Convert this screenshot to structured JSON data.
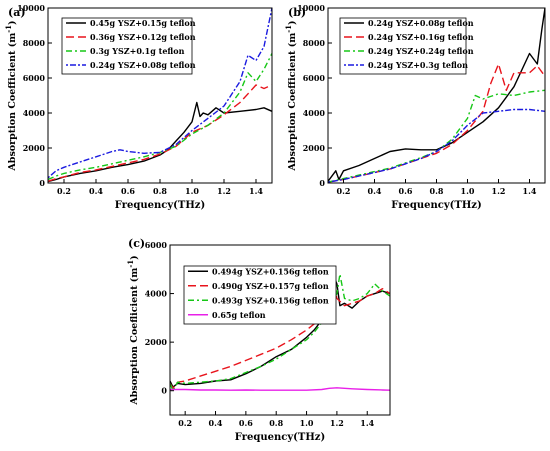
{
  "chart_data": [
    {
      "panel_label": "(a)",
      "type": "line",
      "xlabel": "Frequency(THz)",
      "ylabel": "Absorption Coefficient (m",
      "ylabel_sup": "-1",
      "ylabel_end": ")",
      "xlim": [
        0.1,
        1.5
      ],
      "ylim": [
        0,
        10000
      ],
      "xticks": [
        0.2,
        0.4,
        0.6,
        0.8,
        1.0,
        1.2,
        1.4
      ],
      "xtick_labels": [
        "0.2",
        "0.4",
        "0.6",
        "0.8",
        "1.0",
        "1.2",
        "1.4"
      ],
      "yticks": [
        0,
        2000,
        4000,
        6000,
        8000,
        10000
      ],
      "ytick_labels": [
        "0",
        "2000",
        "4000",
        "6000",
        "8000",
        "10000"
      ],
      "legend_position": "top-left",
      "series": [
        {
          "name": "0.45g YSZ+0.15g teflon",
          "color": "#000000",
          "dash": "solid",
          "x": [
            0.1,
            0.15,
            0.2,
            0.3,
            0.4,
            0.5,
            0.6,
            0.7,
            0.8,
            0.85,
            0.9,
            0.95,
            1.0,
            1.03,
            1.05,
            1.07,
            1.1,
            1.15,
            1.2,
            1.3,
            1.4,
            1.45,
            1.5
          ],
          "y": [
            80,
            200,
            350,
            550,
            700,
            900,
            1050,
            1250,
            1600,
            1900,
            2400,
            2900,
            3500,
            4600,
            3800,
            4000,
            3900,
            4300,
            4000,
            4100,
            4200,
            4300,
            4100
          ]
        },
        {
          "name": "0.36g YSZ+0.12g teflon",
          "color": "#e8141c",
          "dash": "8,4",
          "x": [
            0.1,
            0.15,
            0.2,
            0.3,
            0.4,
            0.5,
            0.6,
            0.7,
            0.8,
            0.9,
            1.0,
            1.1,
            1.2,
            1.3,
            1.35,
            1.4,
            1.45,
            1.5
          ],
          "y": [
            100,
            250,
            350,
            600,
            750,
            950,
            1150,
            1350,
            1650,
            2100,
            2900,
            3300,
            3900,
            4600,
            5100,
            5600,
            5400,
            5600
          ]
        },
        {
          "name": "0.3g YSZ+0.1g teflon",
          "color": "#16c716",
          "dash": "6,3,2,3",
          "x": [
            0.1,
            0.15,
            0.2,
            0.3,
            0.4,
            0.5,
            0.6,
            0.7,
            0.8,
            0.9,
            1.0,
            1.1,
            1.2,
            1.3,
            1.35,
            1.4,
            1.45,
            1.5
          ],
          "y": [
            200,
            400,
            550,
            750,
            900,
            1100,
            1300,
            1500,
            1750,
            2100,
            2800,
            3300,
            4000,
            5200,
            6300,
            5800,
            6500,
            7400
          ]
        },
        {
          "name": "0.24g YSZ+0.08g teflon",
          "color": "#1a1ae0",
          "dash": "2,2,6,2",
          "x": [
            0.1,
            0.15,
            0.2,
            0.3,
            0.4,
            0.5,
            0.55,
            0.6,
            0.7,
            0.8,
            0.9,
            1.0,
            1.1,
            1.2,
            1.3,
            1.35,
            1.4,
            1.45,
            1.5
          ],
          "y": [
            300,
            700,
            900,
            1200,
            1500,
            1800,
            1900,
            1800,
            1700,
            1750,
            2200,
            3000,
            3700,
            4400,
            5800,
            7300,
            7000,
            7800,
            10000
          ]
        }
      ]
    },
    {
      "panel_label": "(b)",
      "type": "line",
      "xlabel": "Frequency(THz)",
      "ylabel": "Absorption Coefficient (m",
      "ylabel_sup": "-1",
      "ylabel_end": ")",
      "xlim": [
        0.1,
        1.5
      ],
      "ylim": [
        0,
        10000
      ],
      "xticks": [
        0.2,
        0.4,
        0.6,
        0.8,
        1.0,
        1.2,
        1.4
      ],
      "xtick_labels": [
        "0.2",
        "0.4",
        "0.6",
        "0.8",
        "1.0",
        "1.2",
        "1.4"
      ],
      "yticks": [
        0,
        2000,
        4000,
        6000,
        8000,
        10000
      ],
      "ytick_labels": [
        "0",
        "2000",
        "4000",
        "6000",
        "8000",
        "10000"
      ],
      "legend_position": "top-left",
      "series": [
        {
          "name": "0.24g YSZ+0.08g teflon",
          "color": "#000000",
          "dash": "solid",
          "x": [
            0.1,
            0.15,
            0.17,
            0.2,
            0.3,
            0.4,
            0.5,
            0.6,
            0.7,
            0.8,
            0.9,
            1.0,
            1.1,
            1.2,
            1.3,
            1.4,
            1.45,
            1.48,
            1.5
          ],
          "y": [
            100,
            700,
            200,
            700,
            1000,
            1400,
            1800,
            1950,
            1900,
            1900,
            2300,
            2900,
            3500,
            4300,
            5500,
            7400,
            6800,
            8800,
            10000
          ]
        },
        {
          "name": "0.24g YSZ+0.16g teflon",
          "color": "#e8141c",
          "dash": "8,4",
          "x": [
            0.1,
            0.2,
            0.3,
            0.4,
            0.5,
            0.6,
            0.7,
            0.8,
            0.9,
            1.0,
            1.1,
            1.15,
            1.2,
            1.25,
            1.3,
            1.4,
            1.45,
            1.5
          ],
          "y": [
            50,
            200,
            400,
            600,
            800,
            1100,
            1400,
            1700,
            2200,
            3000,
            4100,
            5700,
            6800,
            5300,
            6300,
            6300,
            6700,
            6100
          ]
        },
        {
          "name": "0.24g YSZ+0.24g teflon",
          "color": "#16c716",
          "dash": "6,3,2,3",
          "x": [
            0.1,
            0.2,
            0.3,
            0.4,
            0.5,
            0.6,
            0.7,
            0.8,
            0.9,
            1.0,
            1.05,
            1.1,
            1.2,
            1.3,
            1.4,
            1.5
          ],
          "y": [
            50,
            250,
            450,
            650,
            850,
            1150,
            1450,
            1800,
            2500,
            3700,
            5000,
            4800,
            5100,
            5000,
            5200,
            5300
          ]
        },
        {
          "name": "0.24g YSZ+0.3g teflon",
          "color": "#1a1ae0",
          "dash": "2,2,6,2",
          "x": [
            0.1,
            0.2,
            0.3,
            0.4,
            0.5,
            0.6,
            0.7,
            0.8,
            0.9,
            1.0,
            1.1,
            1.2,
            1.3,
            1.4,
            1.5
          ],
          "y": [
            50,
            200,
            400,
            600,
            800,
            1100,
            1400,
            1800,
            2400,
            3300,
            4000,
            4100,
            4200,
            4200,
            4100
          ]
        }
      ]
    },
    {
      "panel_label": "(c)",
      "type": "line",
      "xlabel": "Frequency(THz)",
      "ylabel": "Absorption Coeflicient (m",
      "ylabel_sup": "-1",
      "ylabel_end": ")",
      "xlim": [
        0.1,
        1.55
      ],
      "ylim": [
        -1000,
        6000
      ],
      "xticks": [
        0.2,
        0.4,
        0.6,
        0.8,
        1.0,
        1.2,
        1.4
      ],
      "xtick_labels": [
        "0.2",
        "0.4",
        "0.6",
        "0.8",
        "1.0",
        "1.2",
        "1.4"
      ],
      "yticks": [
        0,
        2000,
        4000,
        6000
      ],
      "ytick_labels": [
        "0",
        "2000",
        "4000",
        "6000"
      ],
      "legend_position": "top-left",
      "series": [
        {
          "name": "0.494g YSZ+0.156g teflon",
          "color": "#000000",
          "dash": "solid",
          "x": [
            0.1,
            0.12,
            0.15,
            0.2,
            0.3,
            0.4,
            0.5,
            0.6,
            0.7,
            0.8,
            0.9,
            1.0,
            1.05,
            1.1,
            1.15,
            1.18,
            1.2,
            1.22,
            1.25,
            1.3,
            1.35,
            1.4,
            1.45,
            1.5,
            1.55
          ],
          "y": [
            400,
            150,
            300,
            250,
            300,
            400,
            450,
            700,
            1000,
            1400,
            1700,
            2200,
            2500,
            2900,
            3600,
            4700,
            4400,
            3500,
            3600,
            3400,
            3700,
            3900,
            4000,
            4100,
            4000
          ]
        },
        {
          "name": "0.490g YSZ+0.157g teflon",
          "color": "#e8141c",
          "dash": "8,4",
          "x": [
            0.1,
            0.12,
            0.15,
            0.2,
            0.3,
            0.4,
            0.5,
            0.6,
            0.7,
            0.8,
            0.9,
            1.0,
            1.1,
            1.15,
            1.17,
            1.2,
            1.25,
            1.3,
            1.35,
            1.4,
            1.45,
            1.5,
            1.55
          ],
          "y": [
            300,
            100,
            350,
            400,
            600,
            800,
            1000,
            1250,
            1500,
            1750,
            2100,
            2500,
            3000,
            4000,
            4800,
            3800,
            3500,
            3600,
            3700,
            3900,
            4000,
            4200,
            4000
          ]
        },
        {
          "name": "0.493g YSZ+0.156g teflon",
          "color": "#16c716",
          "dash": "6,3,2,3",
          "x": [
            0.1,
            0.12,
            0.15,
            0.2,
            0.3,
            0.4,
            0.5,
            0.6,
            0.7,
            0.8,
            0.9,
            1.0,
            1.05,
            1.1,
            1.15,
            1.2,
            1.22,
            1.25,
            1.3,
            1.35,
            1.4,
            1.45,
            1.5,
            1.55
          ],
          "y": [
            300,
            0,
            350,
            300,
            350,
            400,
            500,
            750,
            1000,
            1300,
            1700,
            2100,
            2400,
            2800,
            3400,
            4000,
            4800,
            3800,
            3700,
            3800,
            4000,
            4400,
            4100,
            3900
          ]
        },
        {
          "name": "0.65g teflon",
          "color": "#e820e8",
          "dash": "solid",
          "x": [
            0.1,
            0.2,
            0.3,
            0.4,
            0.5,
            0.6,
            0.7,
            0.8,
            0.9,
            1.0,
            1.1,
            1.15,
            1.2,
            1.25,
            1.3,
            1.4,
            1.5,
            1.55
          ],
          "y": [
            50,
            50,
            30,
            30,
            20,
            30,
            20,
            20,
            20,
            20,
            50,
            100,
            120,
            100,
            80,
            50,
            30,
            20
          ]
        }
      ]
    }
  ]
}
